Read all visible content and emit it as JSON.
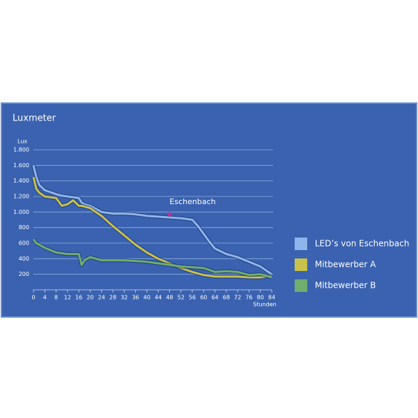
{
  "chart_data": {
    "type": "line",
    "title": "Luxmeter",
    "ylabel": "Lux",
    "xlabel": "Stunden",
    "x": [
      0,
      1,
      2,
      4,
      8,
      10,
      12,
      14,
      16,
      17,
      18,
      20,
      24,
      28,
      32,
      36,
      40,
      44,
      48,
      52,
      56,
      58,
      60,
      62,
      64,
      68,
      72,
      76,
      80,
      84
    ],
    "series": [
      {
        "name": "LED’s von Eschenbach",
        "color": "#8fb6ec",
        "values": [
          1600,
          1450,
          1350,
          1280,
          1230,
          1210,
          1200,
          1190,
          1180,
          1120,
          1100,
          1080,
          1000,
          980,
          980,
          970,
          950,
          940,
          930,
          920,
          900,
          820,
          720,
          620,
          530,
          460,
          420,
          360,
          300,
          200
        ]
      },
      {
        "name": "Mitbewerber A",
        "color": "#c9c24a",
        "values": [
          1450,
          1300,
          1250,
          1200,
          1180,
          1080,
          1100,
          1150,
          1080,
          1080,
          1070,
          1050,
          950,
          820,
          700,
          580,
          480,
          400,
          340,
          280,
          230,
          210,
          190,
          180,
          170,
          170,
          170,
          160,
          160,
          180
        ]
      },
      {
        "name": "Mitbewerber B",
        "color": "#6fae6e",
        "values": [
          650,
          600,
          580,
          540,
          480,
          470,
          460,
          460,
          460,
          320,
          380,
          420,
          380,
          380,
          380,
          370,
          360,
          340,
          320,
          300,
          290,
          285,
          280,
          255,
          230,
          240,
          230,
          190,
          200,
          160
        ]
      }
    ],
    "xlim": [
      0,
      84
    ],
    "xticks": [
      0,
      4,
      8,
      12,
      16,
      20,
      24,
      28,
      32,
      36,
      40,
      44,
      48,
      52,
      56,
      60,
      64,
      68,
      72,
      76,
      80,
      84
    ],
    "ylim": [
      0,
      1800
    ],
    "yticks": [
      200,
      400,
      600,
      800,
      {
        "value": 1000,
        "label": "1.000"
      },
      {
        "value": 1200,
        "label": "1.200"
      },
      {
        "value": 1400,
        "label": "1.400"
      },
      {
        "value": 1600,
        "label": "1.600"
      },
      {
        "value": 1800,
        "label": "1.800"
      }
    ],
    "grid": true,
    "annotations": [
      {
        "text": "Eschenbach",
        "x": 48,
        "y": 930
      }
    ]
  }
}
